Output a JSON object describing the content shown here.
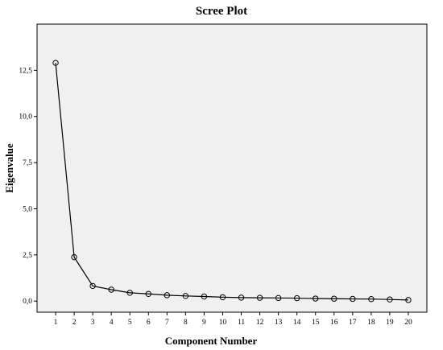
{
  "chart_data": {
    "type": "line",
    "title": "Scree Plot",
    "xlabel": "Component Number",
    "ylabel": "Eigenvalue",
    "x": [
      1,
      2,
      3,
      4,
      5,
      6,
      7,
      8,
      9,
      10,
      11,
      12,
      13,
      14,
      15,
      16,
      17,
      18,
      19,
      20
    ],
    "series": [
      {
        "values": [
          12.9,
          2.38,
          0.82,
          0.62,
          0.45,
          0.39,
          0.32,
          0.28,
          0.25,
          0.21,
          0.19,
          0.18,
          0.17,
          0.16,
          0.14,
          0.13,
          0.12,
          0.11,
          0.09,
          0.06
        ]
      }
    ],
    "xlim": [
      0,
      21
    ],
    "ylim": [
      -0.6,
      15.0
    ],
    "yticks": [
      0.0,
      2.5,
      5.0,
      7.5,
      10.0,
      12.5
    ],
    "ytick_labels": [
      "0,0",
      "2,5",
      "5,0",
      "7,5",
      "10,0",
      "12,5"
    ],
    "xtick_labels": [
      "1",
      "2",
      "3",
      "4",
      "5",
      "6",
      "7",
      "8",
      "9",
      "10",
      "11",
      "12",
      "13",
      "14",
      "15",
      "16",
      "17",
      "18",
      "19",
      "20"
    ],
    "grid": false,
    "marker": "open-circle",
    "plot_background": "#f0f0f0"
  }
}
